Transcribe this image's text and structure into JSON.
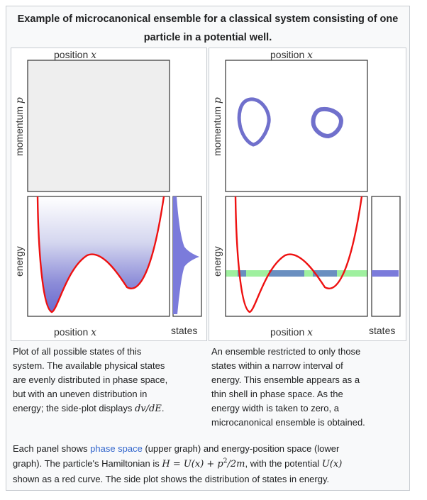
{
  "title": "Example of microcanonical ensemble for a classical system consisting of one particle in a potential well.",
  "panel_left": {
    "top_xlabel_text": "position",
    "top_xlabel_var": "x",
    "ylabel_top_text": "momentum",
    "ylabel_top_var": "p",
    "ylabel_bottom": "energy",
    "bottom_xlabel_text": "position",
    "bottom_xlabel_var": "x",
    "states_label": "states"
  },
  "panel_right": {
    "top_xlabel_text": "position",
    "top_xlabel_var": "x",
    "ylabel_top_text": "momentum",
    "ylabel_top_var": "p",
    "ylabel_bottom": "energy",
    "bottom_xlabel_text": "position",
    "bottom_xlabel_var": "x",
    "states_label": "states"
  },
  "caption_left": {
    "lines": [
      "Plot of all possible states of this",
      "system. The available physical states",
      "are evenly distributed in phase space,",
      "but with an uneven distribution in"
    ],
    "last_line_prefix": "energy; the side-plot displays ",
    "last_line_math": "dv/dE",
    "last_line_suffix": "."
  },
  "caption_right": {
    "lines": [
      "An ensemble restricted to only those",
      "states within a narrow interval of",
      "energy. This ensemble appears as a",
      "thin shell in phase space. As the",
      "energy width is taken to zero, a",
      "microcanonical ensemble is obtained."
    ]
  },
  "footer": {
    "line1_prefix": "Each panel shows ",
    "line1_link": "phase space",
    "line1_suffix": " (upper graph) and energy-position space (lower",
    "line2_prefix": "graph). The particle's Hamiltonian is ",
    "line2_math_h": "H",
    "line2_math_eq": " = U(x) + p",
    "line2_math_exp": "2",
    "line2_math_tail": "/2m",
    "line2_mid": ", with the potential ",
    "line2_math_u": "U(x)",
    "line3": "shown as a red curve. The side plot shows the distribution of states in energy."
  },
  "colors": {
    "potential_curve": "#ee1111",
    "states_fill": "#7b7bdb",
    "shell_band": "#9ff09f",
    "phase_fill": "#eeeeee"
  }
}
